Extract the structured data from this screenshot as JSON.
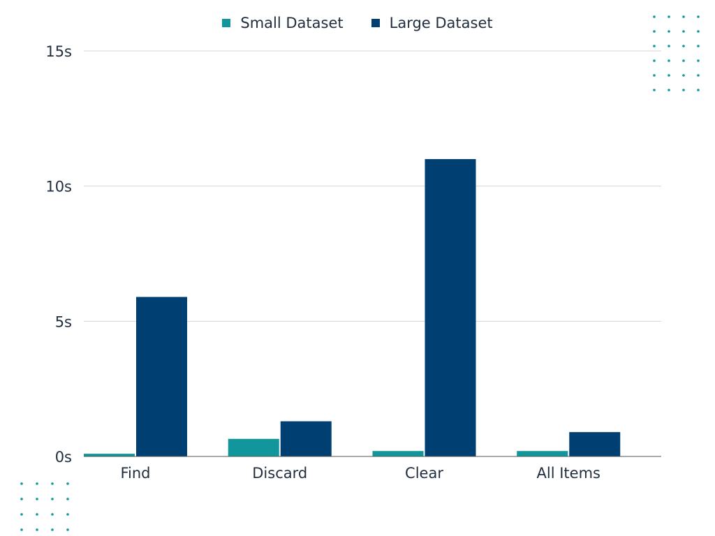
{
  "colors": {
    "small": "#11979b",
    "large": "#003f71",
    "grid": "#d3d3d3",
    "dots": "#11979b"
  },
  "chart_data": {
    "type": "bar",
    "categories": [
      "Find",
      "Discard",
      "Clear",
      "All Items"
    ],
    "series": [
      {
        "name": "Small Dataset",
        "values": [
          0.1,
          0.65,
          0.2,
          0.2
        ]
      },
      {
        "name": "Large Dataset",
        "values": [
          5.9,
          1.3,
          11.0,
          0.9
        ]
      }
    ],
    "ylim": [
      0,
      15
    ],
    "yticks": [
      0,
      5,
      10,
      15
    ],
    "ytick_labels": [
      "0s",
      "5s",
      "10s",
      "15s"
    ],
    "grid": true,
    "legend_position": "top-center"
  }
}
